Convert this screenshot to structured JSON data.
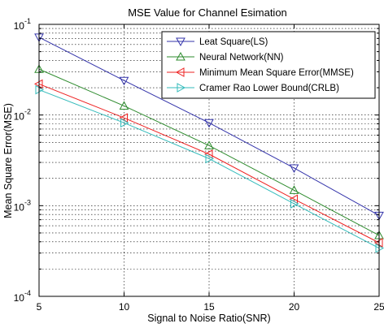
{
  "chart_data": {
    "type": "line",
    "title": "MSE Value for Channel Esimation",
    "xlabel": "Signal to  Noise Ratio(SNR)",
    "ylabel": "Mean Square Error(MSE)",
    "x": [
      5,
      10,
      15,
      20,
      25
    ],
    "xlim": [
      5,
      25
    ],
    "ylim": [
      0.0001,
      0.1
    ],
    "yscale": "log",
    "grid": true,
    "legend_position": "top-right",
    "x_tick_labels": [
      "5",
      "10",
      "15",
      "20",
      "25"
    ],
    "y_tick_labels": [
      {
        "base": "10",
        "exp": "-1",
        "value": 0.1
      },
      {
        "base": "10",
        "exp": "-2",
        "value": 0.01
      },
      {
        "base": "10",
        "exp": "-3",
        "value": 0.001
      },
      {
        "base": "10",
        "exp": "-4",
        "value": 0.0001
      }
    ],
    "series": [
      {
        "name": "Leat Square(LS)",
        "color": "#3333aa",
        "marker": "triangle-down",
        "values": [
          0.072,
          0.024,
          0.0082,
          0.0026,
          0.00078
        ]
      },
      {
        "name": "Neural Network(NN)",
        "color": "#2e8b2e",
        "marker": "triangle-up",
        "values": [
          0.032,
          0.0126,
          0.0046,
          0.00148,
          0.00047
        ]
      },
      {
        "name": "Minimum Mean Square Error(MMSE)",
        "color": "#ee2222",
        "marker": "triangle-left",
        "values": [
          0.022,
          0.0093,
          0.0037,
          0.00118,
          0.00039
        ]
      },
      {
        "name": "Cramer Rao Lower Bound(CRLB)",
        "color": "#33bbbb",
        "marker": "triangle-right",
        "values": [
          0.019,
          0.0082,
          0.0033,
          0.00105,
          0.00034
        ]
      }
    ]
  }
}
